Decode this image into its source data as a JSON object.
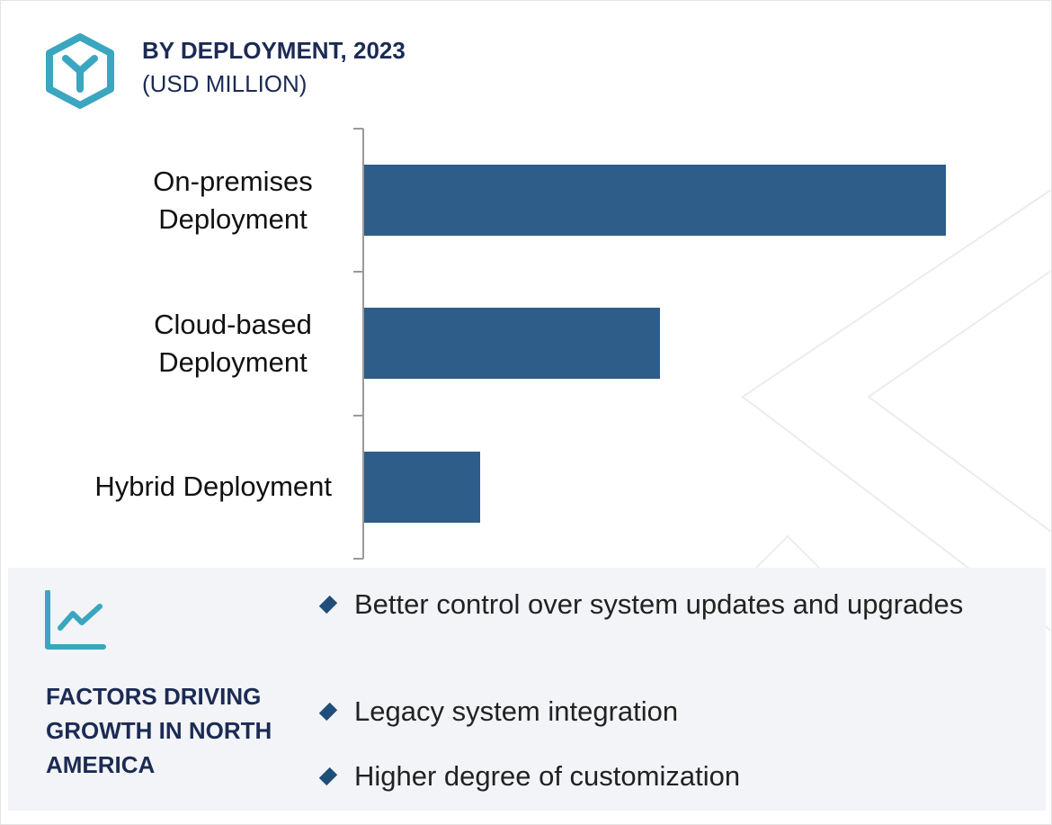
{
  "chart_data": {
    "type": "bar",
    "orientation": "horizontal",
    "title": "BY DEPLOYMENT, 2023",
    "subtitle": "(USD MILLION)",
    "categories": [
      "On-premises Deployment",
      "Cloud-based Deployment",
      "Hybrid Deployment"
    ],
    "values": [
      647,
      329,
      129
    ],
    "color": "#2e5d8a"
  },
  "panel": {
    "heading": "FACTORS DRIVING GROWTH IN NORTH AMERICA",
    "bullets": [
      "Better control over system updates and upgrades",
      "Legacy system integration",
      "Higher degree of customization"
    ]
  }
}
